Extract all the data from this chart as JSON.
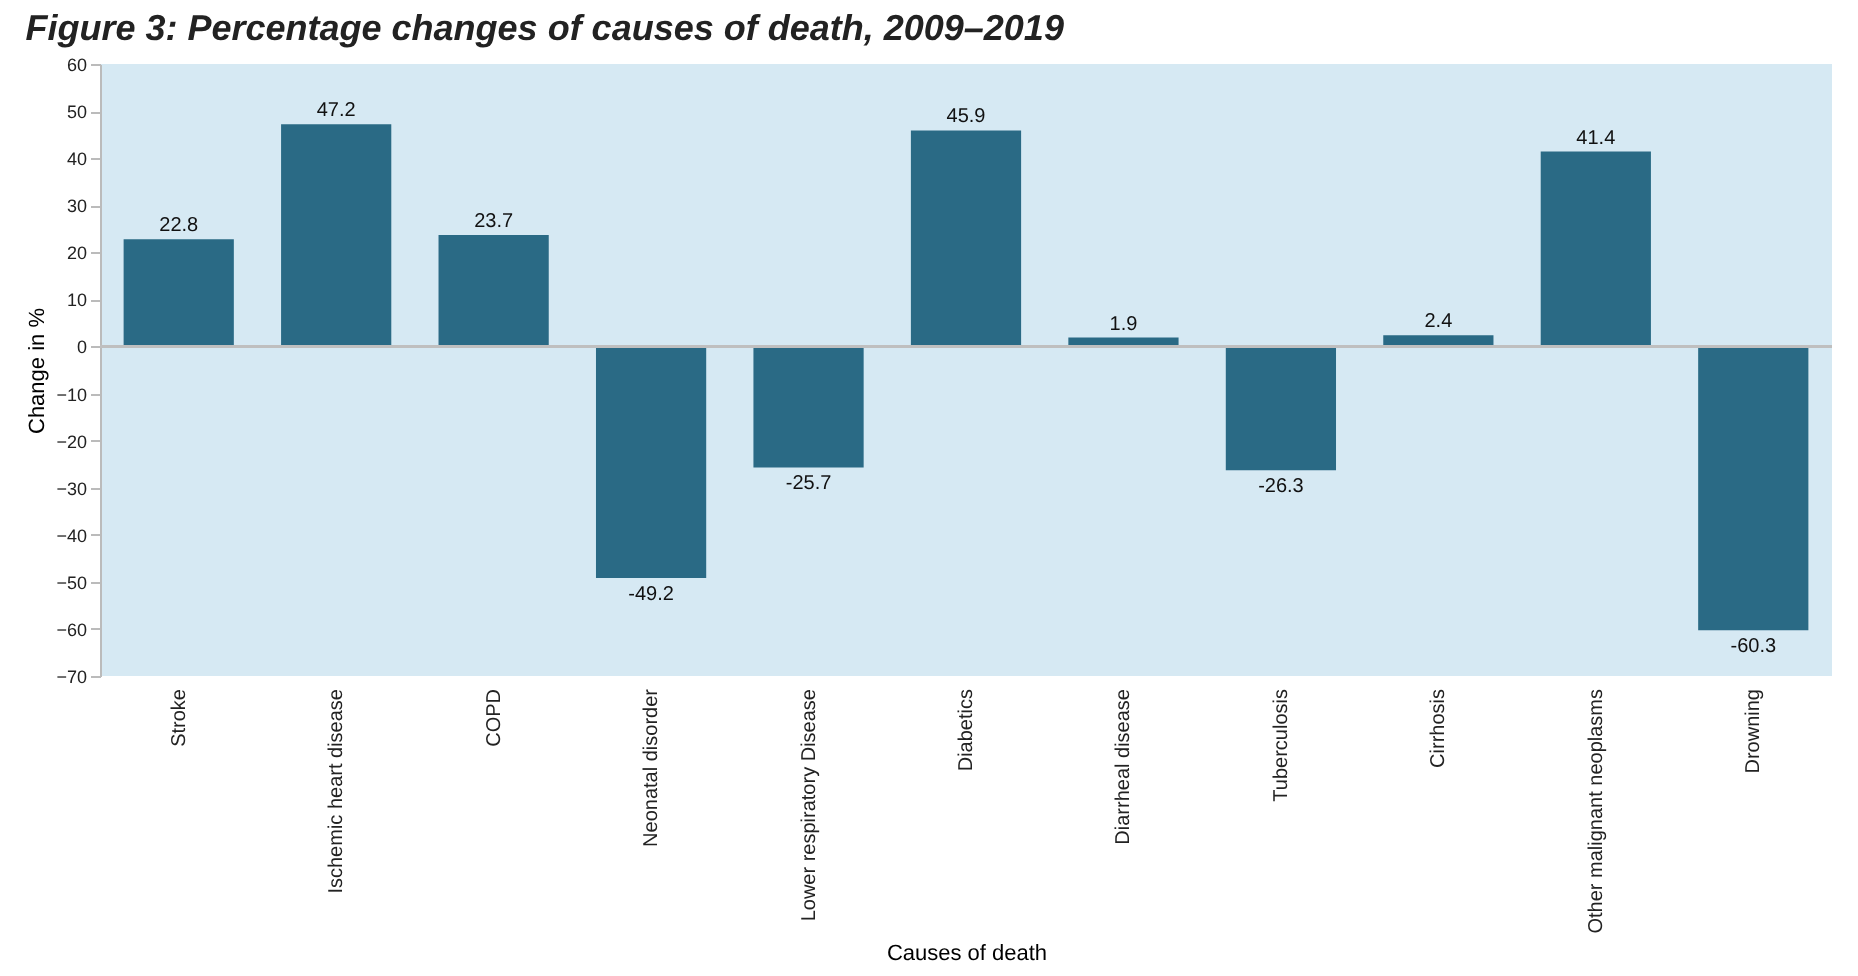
{
  "chart_data": {
    "type": "bar",
    "title": "Figure 3: Percentage changes of causes of death, 2009–2019",
    "xlabel": "Causes of death",
    "ylabel": "Change in %",
    "categories": [
      "Stroke",
      "Ischemic heart disease",
      "COPD",
      "Neonatal disorder",
      "Lower respiratory Disease",
      "Diabetics",
      "Diarrheal disease",
      "Tuberculosis",
      "Cirrhosis",
      "Other malignant neoplasms",
      "Drowning"
    ],
    "values": [
      22.8,
      47.2,
      23.7,
      -49.2,
      -25.7,
      45.9,
      1.9,
      -26.3,
      2.4,
      41.4,
      -60.3
    ],
    "color": "#2a6a85",
    "data_labels": true,
    "ylim": [
      -70,
      60
    ],
    "yticks": [
      -70,
      -60,
      -50,
      -40,
      -30,
      -20,
      -10,
      0,
      10,
      20,
      30,
      40,
      50,
      60
    ],
    "ref_lines": [
      {
        "axis": "y",
        "value": 0,
        "color": "#bfbfbf"
      }
    ],
    "grid": false
  }
}
